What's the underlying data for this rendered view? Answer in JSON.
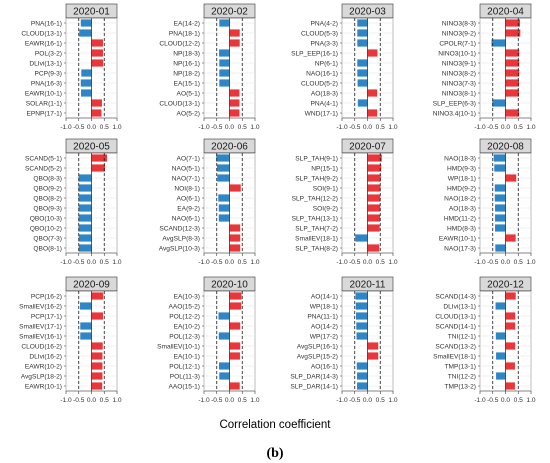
{
  "figure": {
    "xlabel": "Correlation coefficient",
    "label": "(b)"
  },
  "colors": {
    "positive": "#e8363a",
    "negative": "#2f86c6",
    "strip": "#d9d9d9",
    "grid": "#e6e6e6",
    "threshold": "#1a1a1a"
  },
  "chart_data": [
    {
      "type": "bar",
      "title": "2020-01",
      "xlim": [
        -1.0,
        1.0
      ],
      "xticks": [
        "-1.0",
        "-0.5",
        "0.0",
        "0.5",
        "1.0"
      ],
      "thresholds": [
        -0.5,
        0.5
      ],
      "categories": [
        "PNA(16-1)",
        "CLOUD(13-1)",
        "EAWR(16-1)",
        "POL(3-2)",
        "DLIvi(13-1)",
        "PCP(9-3)",
        "PNA(16-3)",
        "EAWR(10-1)",
        "SOLAR(1-1)",
        "EPNP(17-1)"
      ],
      "values": [
        -0.42,
        -0.48,
        0.45,
        0.45,
        0.46,
        -0.4,
        -0.42,
        -0.41,
        0.41,
        0.39
      ]
    },
    {
      "type": "bar",
      "title": "2020-02",
      "xlim": [
        -1.0,
        1.0
      ],
      "xticks": [
        "-1.0",
        "-0.5",
        "0.0",
        "0.5",
        "1.0"
      ],
      "thresholds": [
        -0.5,
        0.5
      ],
      "categories": [
        "EA(14-2)",
        "PNA(18-1)",
        "CLOUD(12-2)",
        "NP(18-3)",
        "NP(16-1)",
        "NP(18-2)",
        "EA(15-1)",
        "AO(5-1)",
        "CLOUD(13-1)",
        "AO(5-2)"
      ],
      "values": [
        -0.4,
        0.4,
        0.4,
        -0.41,
        -0.4,
        -0.4,
        -0.4,
        0.39,
        0.39,
        0.39
      ]
    },
    {
      "type": "bar",
      "title": "2020-03",
      "xlim": [
        -1.0,
        1.0
      ],
      "xticks": [
        "-1.0",
        "-0.5",
        "0.0",
        "0.5",
        "1.0"
      ],
      "thresholds": [
        -0.5,
        0.5
      ],
      "categories": [
        "PNA(4-2)",
        "CLOUD(5-3)",
        "PNA(3-3)",
        "SLP_EEP(16-1)",
        "NP(6-1)",
        "NAO(16-1)",
        "CLOUD(5-2)",
        "AO(18-3)",
        "PNA(4-1)",
        "WND(17-1)"
      ],
      "values": [
        -0.4,
        -0.4,
        -0.4,
        0.39,
        -0.4,
        -0.4,
        -0.39,
        0.38,
        -0.38,
        0.38
      ]
    },
    {
      "type": "bar",
      "title": "2020-04",
      "xlim": [
        -1.0,
        1.0
      ],
      "xticks": [
        "-1.0",
        "-0.5",
        "0.0",
        "0.5",
        "1.0"
      ],
      "thresholds": [
        -0.5,
        0.5
      ],
      "categories": [
        "NINO3(8-3)",
        "NINO3(9-2)",
        "CPOLR(7-1)",
        "NINO3(10-1)",
        "NINO3(9-1)",
        "NINO3(8-2)",
        "NINO3(7-3)",
        "NINO3(8-1)",
        "SLP_EEP(6-3)",
        "NINO3.4(10-1)"
      ],
      "values": [
        0.57,
        0.58,
        -0.55,
        0.54,
        0.54,
        0.54,
        0.53,
        0.53,
        -0.52,
        0.53
      ]
    },
    {
      "type": "bar",
      "title": "2020-05",
      "xlim": [
        -1.0,
        1.0
      ],
      "xticks": [
        "-1.0",
        "-0.5",
        "0.0",
        "0.5",
        "1.0"
      ],
      "thresholds": [
        -0.5,
        0.5
      ],
      "categories": [
        "SCAND(5-1)",
        "SCAND(5-2)",
        "QBO(8-3)",
        "QBO(9-2)",
        "QBO(8-2)",
        "QBO(9-3)",
        "QBO(10-3)",
        "QBO(10-2)",
        "QBO(7-3)",
        "QBO(8-1)"
      ],
      "values": [
        0.61,
        0.53,
        -0.51,
        -0.51,
        -0.51,
        -0.51,
        -0.51,
        -0.51,
        -0.5,
        -0.5
      ]
    },
    {
      "type": "bar",
      "title": "2020-06",
      "xlim": [
        -1.0,
        1.0
      ],
      "xticks": [
        "-1.0",
        "-0.5",
        "0.0",
        "0.5",
        "1.0"
      ],
      "thresholds": [
        -0.5,
        0.5
      ],
      "categories": [
        "AO(7-1)",
        "NAO(5-1)",
        "NAO(7-1)",
        "NOI(8-1)",
        "AO(6-1)",
        "EA(9-2)",
        "NAO(6-1)",
        "SCAND(12-3)",
        "AvgSLP(8-3)",
        "AvgSLP(10-3)"
      ],
      "values": [
        -0.52,
        -0.49,
        -0.48,
        0.44,
        -0.44,
        -0.42,
        -0.42,
        0.42,
        0.42,
        0.42
      ]
    },
    {
      "type": "bar",
      "title": "2020-07",
      "xlim": [
        -1.0,
        1.0
      ],
      "xticks": [
        "-1.0",
        "-0.5",
        "0.0",
        "0.5",
        "1.0"
      ],
      "thresholds": [
        -0.5,
        0.5
      ],
      "categories": [
        "SLP_TAH(9-1)",
        "NP(15-1)",
        "SLP_TAH(9-2)",
        "SOI(9-1)",
        "SLP_TAH(12-2)",
        "SOI(9-2)",
        "SLP_TAH(13-1)",
        "SLP_TAH(7-2)",
        "SmallEV(18-1)",
        "SLP_TAH(8-2)"
      ],
      "values": [
        0.56,
        0.54,
        0.52,
        0.51,
        0.5,
        0.5,
        0.49,
        0.48,
        -0.48,
        0.46
      ]
    },
    {
      "type": "bar",
      "title": "2020-08",
      "xlim": [
        -1.0,
        1.0
      ],
      "xticks": [
        "-1.0",
        "-0.5",
        "0.0",
        "0.5",
        "1.0"
      ],
      "thresholds": [
        -0.5,
        0.5
      ],
      "categories": [
        "NAO(18-3)",
        "HMD(9-3)",
        "WP(18-1)",
        "HMD(9-2)",
        "NAO(18-2)",
        "AO(18-3)",
        "HMD(11-2)",
        "HMD(8-3)",
        "EAWR(10-1)",
        "NAO(17-3)"
      ],
      "values": [
        -0.46,
        -0.44,
        0.42,
        -0.42,
        -0.42,
        -0.41,
        -0.41,
        -0.41,
        0.4,
        -0.4
      ]
    },
    {
      "type": "bar",
      "title": "2020-09",
      "xlim": [
        -1.0,
        1.0
      ],
      "xticks": [
        "-1.0",
        "-0.5",
        "0.0",
        "0.5",
        "1.0"
      ],
      "thresholds": [
        -0.5,
        0.5
      ],
      "categories": [
        "PCP(16-2)",
        "SmallEV(16-2)",
        "PCP(17-1)",
        "SmallEV(17-1)",
        "SmallEV(16-1)",
        "CLOUD(16-2)",
        "DLIvi(16-2)",
        "EAWR(10-2)",
        "AvgSLP(18-2)",
        "EAWR(10-1)"
      ],
      "values": [
        0.46,
        -0.45,
        0.45,
        -0.44,
        -0.44,
        0.44,
        0.43,
        0.43,
        0.43,
        0.42
      ]
    },
    {
      "type": "bar",
      "title": "2020-10",
      "xlim": [
        -1.0,
        1.0
      ],
      "xticks": [
        "-1.0",
        "-0.5",
        "0.0",
        "0.5",
        "1.0"
      ],
      "thresholds": [
        -0.5,
        0.5
      ],
      "categories": [
        "EA(10-3)",
        "AAO(15-2)",
        "POL(12-2)",
        "EA(10-2)",
        "POL(12-3)",
        "SmallEV(10-1)",
        "EA(10-1)",
        "POL(12-1)",
        "POL(11-3)",
        "AAO(15-1)"
      ],
      "values": [
        0.47,
        0.46,
        -0.43,
        0.42,
        -0.42,
        0.42,
        0.41,
        -0.41,
        -0.4,
        0.4
      ]
    },
    {
      "type": "bar",
      "title": "2020-11",
      "xlim": [
        -1.0,
        1.0
      ],
      "xticks": [
        "-1.0",
        "-0.5",
        "0.0",
        "0.5",
        "1.0"
      ],
      "thresholds": [
        -0.5,
        0.5
      ],
      "categories": [
        "AO(14-1)",
        "WP(18-1)",
        "PNA(11-1)",
        "AO(14-2)",
        "WP(17-2)",
        "AvgSLP(16-1)",
        "AvgSLP(15-2)",
        "AO(16-1)",
        "SLP_DAR(14-3)",
        "SLP_DAR(14-1)"
      ],
      "values": [
        -0.47,
        -0.46,
        -0.45,
        -0.44,
        -0.43,
        0.42,
        0.42,
        -0.42,
        -0.41,
        -0.41
      ]
    },
    {
      "type": "bar",
      "title": "2020-12",
      "xlim": [
        -1.0,
        1.0
      ],
      "xticks": [
        "-1.0",
        "-0.5",
        "0.0",
        "0.5",
        "1.0"
      ],
      "thresholds": [
        -0.5,
        0.5
      ],
      "categories": [
        "SCAND(14-3)",
        "DLIvi(13-1)",
        "CLOUD(13-1)",
        "SCAND(14-1)",
        "TNI(12-1)",
        "SCAND(13-2)",
        "SmallEV(18-1)",
        "TMP(13-1)",
        "TNI(12-2)",
        "TMP(13-2)"
      ],
      "values": [
        0.4,
        -0.39,
        0.38,
        0.38,
        -0.38,
        0.38,
        -0.37,
        0.37,
        -0.37,
        0.37
      ]
    }
  ]
}
